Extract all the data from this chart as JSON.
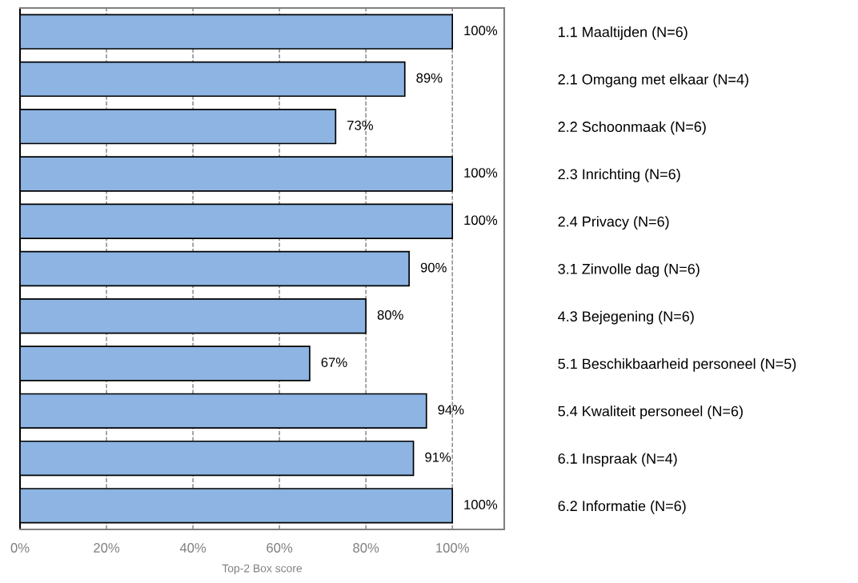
{
  "chart_data": {
    "type": "bar",
    "orientation": "horizontal",
    "xlabel": "Top-2 Box score",
    "categories": [
      "1.1 Maaltijden (N=6)",
      "2.1 Omgang met elkaar (N=4)",
      "2.2 Schoonmaak (N=6)",
      "2.3 Inrichting (N=6)",
      "2.4 Privacy (N=6)",
      "3.1 Zinvolle dag (N=6)",
      "4.3 Bejegening (N=6)",
      "5.1 Beschikbaarheid personeel (N=5)",
      "5.4 Kwaliteit personeel (N=6)",
      "6.1 Inspraak (N=4)",
      "6.2 Informatie (N=6)"
    ],
    "values": [
      100,
      89,
      73,
      100,
      100,
      90,
      80,
      67,
      94,
      91,
      100
    ],
    "value_labels": [
      "100%",
      "89%",
      "73%",
      "100%",
      "100%",
      "90%",
      "80%",
      "67%",
      "94%",
      "91%",
      "100%"
    ],
    "color": "#8db4e2",
    "xlim": [
      0,
      112
    ],
    "xticks": [
      {
        "value": 0,
        "label": "0%"
      },
      {
        "value": 20,
        "label": "20%"
      },
      {
        "value": 40,
        "label": "40%"
      },
      {
        "value": 60,
        "label": "60%"
      },
      {
        "value": 80,
        "label": "80%"
      },
      {
        "value": 100,
        "label": "100%"
      }
    ],
    "grid": "x",
    "legend": false
  }
}
